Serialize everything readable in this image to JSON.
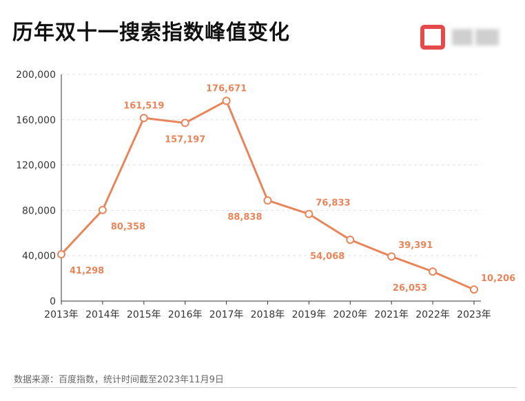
{
  "title": "历年双十一搜索指数峰值变化",
  "source_note": "数据来源：百度指数，统计时间截至2023年11月9日",
  "chart_data": {
    "type": "line",
    "categories": [
      "2013年",
      "2014年",
      "2015年",
      "2016年",
      "2017年",
      "2018年",
      "2019年",
      "2020年",
      "2021年",
      "2022年",
      "2023年"
    ],
    "values": [
      41298,
      80358,
      161519,
      157197,
      176671,
      88838,
      76833,
      54068,
      39391,
      26053,
      10206
    ],
    "value_labels": [
      "41,298",
      "80,358",
      "161,519",
      "157,197",
      "176,671",
      "88,838",
      "76,833",
      "54,068",
      "39,391",
      "26,053",
      "10,206"
    ],
    "ylim": [
      0,
      200000
    ],
    "y_ticks": [
      0,
      40000,
      80000,
      120000,
      160000,
      200000
    ],
    "y_tick_labels": [
      "0",
      "40,000",
      "80,000",
      "120,000",
      "160,000",
      "200,000"
    ],
    "grid": true,
    "line_color": "#e8855a",
    "label_color": "#e8855a"
  }
}
